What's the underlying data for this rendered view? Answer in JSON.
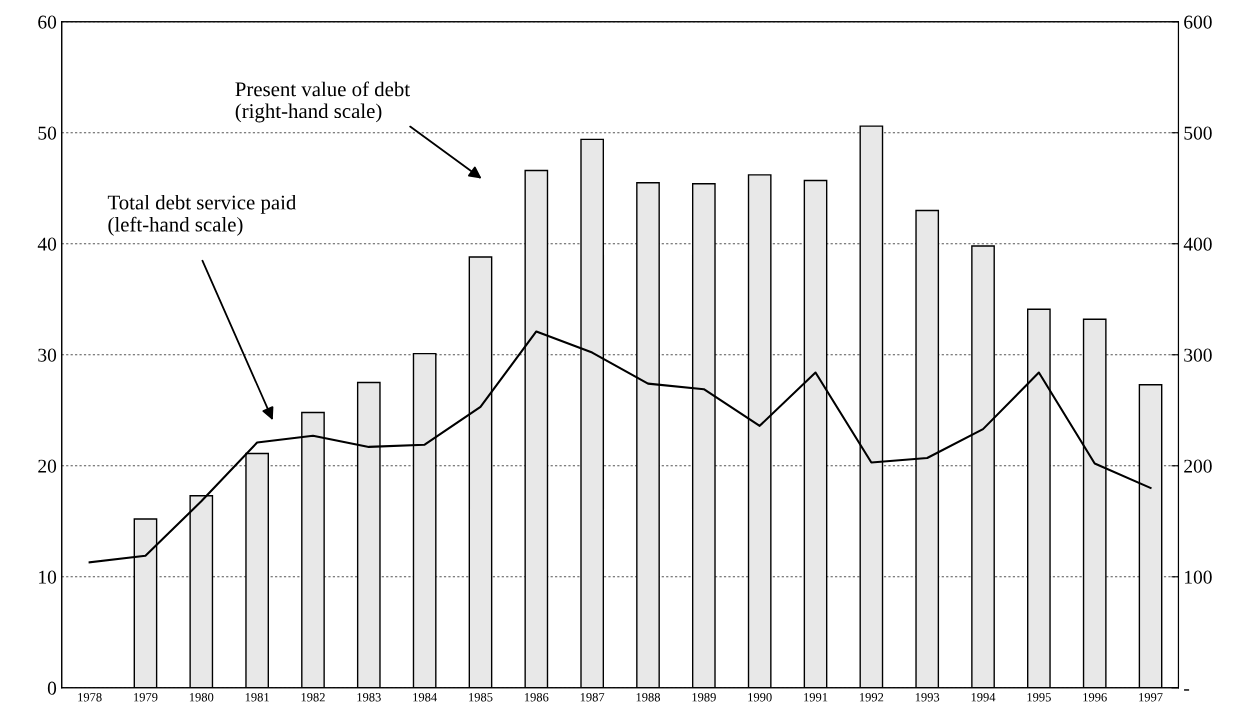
{
  "chart_data": {
    "type": "bar",
    "categories": [
      "1978",
      "1979",
      "1980",
      "1981",
      "1982",
      "1983",
      "1984",
      "1985",
      "1986",
      "1987",
      "1988",
      "1989",
      "1990",
      "1991",
      "1992",
      "1993",
      "1994",
      "1995",
      "1996",
      "1997"
    ],
    "series": [
      {
        "axis": "y2",
        "color": "#e8e8e8",
        "values": [
          null,
          152,
          173,
          211,
          248,
          275,
          301,
          388,
          466,
          494,
          455,
          454,
          462,
          457,
          506,
          430,
          398,
          341,
          332,
          273
        ]
      },
      {
        "type": "line",
        "color": "#000000",
        "values": [
          11.3,
          11.9,
          16.8,
          22.1,
          22.7,
          21.7,
          21.9,
          25.3,
          32.1,
          30.2,
          27.4,
          26.9,
          23.6,
          28.4,
          20.3,
          20.7,
          23.3,
          28.4,
          20.2,
          18.0
        ]
      }
    ],
    "ylim": [
      0,
      60
    ],
    "yticks": [
      0,
      10,
      20,
      30,
      40,
      50,
      60
    ],
    "y2lim": [
      0,
      600
    ],
    "y2ticks": [
      {
        "value": 0,
        "label": "-"
      },
      100,
      200,
      300,
      400,
      500,
      600
    ],
    "grid": "y",
    "line_style": "solid",
    "marker": "none",
    "annotations": [
      "Present value of debt\n(right-hand scale)",
      "Total debt service paid\n(left-hand scale)"
    ]
  }
}
